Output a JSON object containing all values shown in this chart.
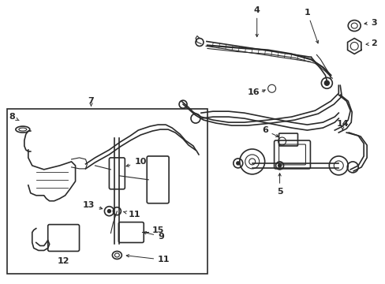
{
  "bg_color": "#ffffff",
  "line_color": "#2a2a2a",
  "fig_width": 4.89,
  "fig_height": 3.6,
  "dpi": 100,
  "fontsize": 8,
  "fontsize_small": 7
}
